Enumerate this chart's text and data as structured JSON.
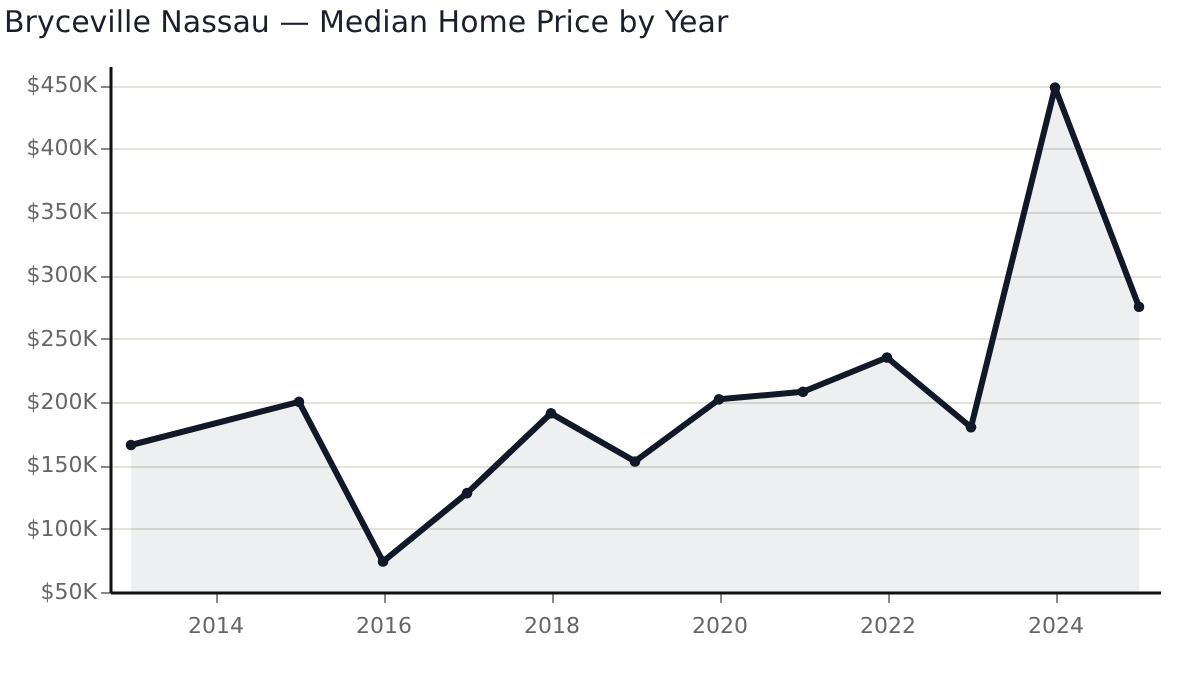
{
  "chart_data": {
    "type": "area",
    "title": "Bryceville Nassau — Median Home Price by Year",
    "x": [
      2013,
      2015,
      2016,
      2017,
      2018,
      2019,
      2020,
      2021,
      2022,
      2023,
      2024,
      2025
    ],
    "series": [
      {
        "color": "#111827",
        "values": [
          166000,
          200000,
          74000,
          128000,
          191000,
          153000,
          202000,
          208000,
          235000,
          180000,
          448000,
          275000
        ]
      }
    ],
    "xlim": [
      2012.75,
      2025.25
    ],
    "xticks": [
      2014,
      2016,
      2018,
      2020,
      2022,
      2024
    ],
    "ylim": [
      50000,
      465000
    ],
    "yticks": [
      {
        "value": 50000,
        "label": "$50K"
      },
      {
        "value": 100000,
        "label": "$100K"
      },
      {
        "value": 150000,
        "label": "$150K"
      },
      {
        "value": 200000,
        "label": "$200K"
      },
      {
        "value": 250000,
        "label": "$250K"
      },
      {
        "value": 300000,
        "label": "$300K"
      },
      {
        "value": 350000,
        "label": "$350K"
      },
      {
        "value": 400000,
        "label": "$400K"
      },
      {
        "value": 450000,
        "label": "$450K"
      }
    ],
    "grid": "y",
    "marker": "circle",
    "line_style": "solid"
  }
}
